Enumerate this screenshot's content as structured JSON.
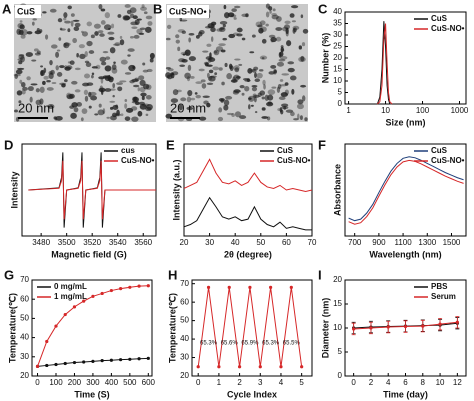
{
  "images": [
    {
      "label": "A",
      "tag": "CuS",
      "scale_bar": "20 nm"
    },
    {
      "label": "B",
      "tag": "CuS-NO•",
      "scale_bar": "20 nm"
    }
  ],
  "chart_data": [
    {
      "type": "line",
      "label": "C",
      "xlabel": "Size (nm)",
      "ylabel": "Number (%)",
      "xlog": true,
      "xlim": [
        0.8,
        1500
      ],
      "xticks": [
        1,
        10,
        100,
        1000
      ],
      "ylim": [
        0,
        40
      ],
      "yticks": [
        0,
        5,
        10,
        15,
        20,
        25,
        30,
        35,
        40
      ],
      "legend": "upper right",
      "series": [
        {
          "name": "CuS",
          "color": "#111111",
          "x": [
            6,
            7,
            8,
            9,
            10,
            11,
            12,
            13,
            15
          ],
          "values": [
            0,
            3,
            15,
            36,
            25,
            8,
            2,
            0,
            0
          ]
        },
        {
          "name": "CuS-NO•",
          "color": "#d62728",
          "x": [
            6,
            7,
            8,
            9,
            10,
            11,
            12,
            13,
            15
          ],
          "values": [
            0,
            1,
            8,
            28,
            35,
            18,
            5,
            1,
            0
          ]
        }
      ]
    },
    {
      "type": "line",
      "label": "D",
      "xlabel": "Magnetic field (G)",
      "ylabel": "Intensity",
      "xlim": [
        3465,
        3570
      ],
      "xticks": [
        3480,
        3500,
        3520,
        3540,
        3560
      ],
      "ylim": [
        -1.1,
        1.1
      ],
      "legend": "upper right",
      "series": [
        {
          "name": "cus",
          "color": "#111111",
          "x": [
            3470,
            3494,
            3496,
            3497,
            3498,
            3500,
            3509,
            3511,
            3512,
            3513,
            3515,
            3524,
            3526,
            3527,
            3528,
            3530,
            3570
          ],
          "values": [
            0,
            0.05,
            0.3,
            0.9,
            -0.9,
            0,
            0.05,
            0.3,
            0.9,
            -0.9,
            0,
            0.05,
            0.3,
            0.9,
            -0.9,
            0,
            0
          ]
        },
        {
          "name": "CuS-NO•",
          "color": "#d62728",
          "x": [
            3470,
            3494,
            3496,
            3497,
            3498,
            3500,
            3509,
            3511,
            3512,
            3513,
            3515,
            3524,
            3526,
            3527,
            3528,
            3530,
            3570
          ],
          "values": [
            0,
            0.04,
            0.22,
            0.7,
            -0.7,
            0,
            0.04,
            0.22,
            0.7,
            -0.7,
            0,
            0.04,
            0.22,
            0.7,
            -0.7,
            0,
            0
          ]
        }
      ]
    },
    {
      "type": "line",
      "label": "E",
      "xlabel": "2θ (degree)",
      "ylabel": "Intensity (a.u.)",
      "xlim": [
        20,
        70
      ],
      "xticks": [
        20,
        30,
        40,
        50,
        60,
        70
      ],
      "ylim": [
        0,
        1.2
      ],
      "legend": "upper right",
      "series": [
        {
          "name": "CuS",
          "color": "#111111",
          "x": [
            20,
            22.5,
            25,
            27.5,
            30,
            32.5,
            35,
            37.5,
            40,
            42.5,
            45,
            47.5,
            50,
            52.5,
            55,
            57.5,
            60,
            62.5,
            65,
            67.5,
            70
          ],
          "values": [
            0.12,
            0.15,
            0.2,
            0.35,
            0.5,
            0.38,
            0.25,
            0.22,
            0.25,
            0.2,
            0.22,
            0.38,
            0.22,
            0.15,
            0.12,
            0.18,
            0.1,
            0.12,
            0.1,
            0.08,
            0.08
          ]
        },
        {
          "name": "CuS-NO•",
          "color": "#d62728",
          "x": [
            20,
            22.5,
            25,
            27.5,
            30,
            32.5,
            35,
            37.5,
            40,
            42.5,
            45,
            47.5,
            50,
            52.5,
            55,
            57.5,
            60,
            62.5,
            65,
            67.5,
            70
          ],
          "values": [
            0.62,
            0.66,
            0.7,
            0.85,
            1.0,
            0.82,
            0.7,
            0.68,
            0.72,
            0.66,
            0.7,
            0.82,
            0.7,
            0.64,
            0.62,
            0.66,
            0.6,
            0.62,
            0.6,
            0.58,
            0.6
          ]
        }
      ]
    },
    {
      "type": "line",
      "label": "F",
      "xlabel": "Wavelength (nm)",
      "ylabel": "Absorbance",
      "xlim": [
        620,
        1620
      ],
      "xticks": [
        700,
        900,
        1100,
        1300,
        1500
      ],
      "ylim": [
        0,
        1.8
      ],
      "legend": "upper right",
      "series": [
        {
          "name": "CuS",
          "color": "#1f3f7a",
          "x": [
            650,
            700,
            750,
            800,
            850,
            900,
            950,
            1000,
            1050,
            1100,
            1150,
            1200,
            1250,
            1300,
            1350,
            1400,
            1450,
            1500,
            1550,
            1600
          ],
          "values": [
            0.35,
            0.3,
            0.33,
            0.45,
            0.62,
            0.85,
            1.07,
            1.27,
            1.42,
            1.52,
            1.55,
            1.53,
            1.48,
            1.42,
            1.36,
            1.3,
            1.24,
            1.19,
            1.14,
            1.1
          ]
        },
        {
          "name": "CuS-NO•",
          "color": "#d62728",
          "x": [
            650,
            700,
            750,
            800,
            850,
            900,
            950,
            1000,
            1050,
            1100,
            1150,
            1200,
            1250,
            1300,
            1350,
            1400,
            1450,
            1500,
            1550,
            1600
          ],
          "values": [
            0.28,
            0.23,
            0.26,
            0.38,
            0.55,
            0.78,
            1.0,
            1.2,
            1.35,
            1.45,
            1.48,
            1.46,
            1.41,
            1.35,
            1.29,
            1.23,
            1.17,
            1.12,
            1.07,
            1.03
          ]
        }
      ]
    },
    {
      "type": "line",
      "label": "G",
      "xlabel": "Time (S)",
      "ylabel": "Temperature(℃)",
      "markers": true,
      "xlim": [
        -30,
        620
      ],
      "xticks": [
        0,
        100,
        200,
        300,
        400,
        500,
        600
      ],
      "ylim": [
        20,
        70
      ],
      "yticks": [
        20,
        30,
        40,
        50,
        60,
        70
      ],
      "legend": "upper left",
      "series": [
        {
          "name": "0 mg/mL",
          "color": "#111111",
          "x": [
            0,
            50,
            100,
            150,
            200,
            250,
            300,
            350,
            400,
            450,
            500,
            550,
            600
          ],
          "values": [
            25,
            25.5,
            26,
            26.5,
            27,
            27.3,
            27.6,
            28,
            28.2,
            28.5,
            28.7,
            29,
            29.2
          ]
        },
        {
          "name": "1 mg/mL",
          "color": "#d62728",
          "x": [
            0,
            50,
            100,
            150,
            200,
            250,
            300,
            350,
            400,
            450,
            500,
            550,
            600
          ],
          "values": [
            25,
            38,
            46,
            52,
            56,
            59,
            61.5,
            63,
            64.5,
            65.5,
            66.2,
            66.8,
            67
          ]
        }
      ]
    },
    {
      "type": "line",
      "label": "H",
      "xlabel": "Cycle Index",
      "ylabel": "Temperature(℃)",
      "markers": true,
      "xlim": [
        -0.3,
        5.5
      ],
      "xticks": [
        0,
        1,
        2,
        3,
        4,
        5
      ],
      "ylim": [
        20,
        72
      ],
      "yticks": [
        20,
        30,
        40,
        50,
        60,
        70
      ],
      "annotations": [
        "65.3%",
        "65.6%",
        "65.9%",
        "65.3%",
        "65.5%"
      ],
      "series": [
        {
          "color": "#d62728",
          "x": [
            0,
            0.5,
            1,
            1.5,
            2,
            2.5,
            3,
            3.5,
            4,
            4.5,
            5
          ],
          "values": [
            25,
            68,
            25,
            68,
            25,
            68,
            25,
            68,
            25,
            68,
            25
          ]
        }
      ]
    },
    {
      "type": "line",
      "label": "I",
      "xlabel": "Time (day)",
      "ylabel": "Diameter (nm)",
      "markers": true,
      "xlim": [
        -1,
        13
      ],
      "xticks": [
        0,
        2,
        4,
        6,
        8,
        10,
        12
      ],
      "ylim": [
        0,
        20
      ],
      "yticks": [
        0,
        5,
        10,
        15,
        20
      ],
      "legend": "upper right",
      "series": [
        {
          "name": "PBS",
          "color": "#111111",
          "x": [
            0,
            2,
            4,
            6,
            8,
            10,
            12
          ],
          "values": [
            10,
            10.2,
            10.3,
            10.4,
            10.5,
            10.6,
            11
          ],
          "errors": [
            1.2,
            1.2,
            1.2,
            1.2,
            1.2,
            1.2,
            1.2
          ]
        },
        {
          "name": "Serum",
          "color": "#d62728",
          "x": [
            0,
            2,
            4,
            6,
            8,
            10,
            12
          ],
          "values": [
            9.8,
            10,
            10.2,
            10.3,
            10.4,
            10.8,
            11.2
          ],
          "errors": [
            1.2,
            1.2,
            1.2,
            1.2,
            1.2,
            1.2,
            1.2
          ]
        }
      ]
    }
  ]
}
